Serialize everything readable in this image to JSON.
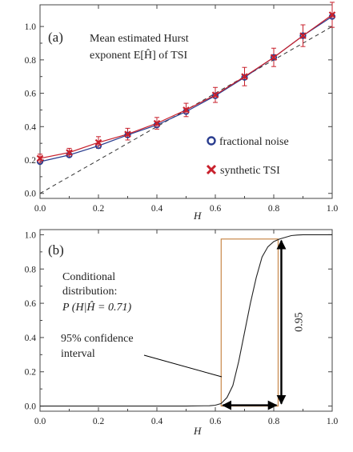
{
  "chart_data": [
    {
      "type": "line",
      "panel_label": "(a)",
      "annotation_lines": [
        "Mean estimated Hurst",
        "exponent E[Ĥ] of TSI"
      ],
      "xlabel": "H",
      "ylabel": "",
      "xlim": [
        0,
        1
      ],
      "ylim": [
        -0.03,
        1.13
      ],
      "xticks": [
        "0.0",
        "0.2",
        "0.4",
        "0.6",
        "0.8",
        "1.0"
      ],
      "yticks": [
        "0.0",
        "0.2",
        "0.4",
        "0.6",
        "0.8",
        "1.0"
      ],
      "x": [
        0.0,
        0.1,
        0.2,
        0.3,
        0.4,
        0.5,
        0.6,
        0.7,
        0.8,
        0.9,
        1.0
      ],
      "legend_placement": "lower-right",
      "series": [
        {
          "name": "fractional noise",
          "marker": "circle",
          "color": "#2a3d8f",
          "values": [
            0.19,
            0.23,
            0.285,
            0.35,
            0.41,
            0.49,
            0.585,
            0.695,
            0.815,
            0.945,
            1.06
          ]
        },
        {
          "name": "synthetic TSI",
          "marker": "cross",
          "color": "#c8202c",
          "values": [
            0.21,
            0.245,
            0.305,
            0.355,
            0.42,
            0.5,
            0.59,
            0.7,
            0.815,
            0.945,
            1.07
          ],
          "error": [
            0.025,
            0.025,
            0.035,
            0.035,
            0.035,
            0.04,
            0.045,
            0.055,
            0.055,
            0.065,
            0.075
          ]
        },
        {
          "name": "",
          "style": "dashed",
          "color": "#333333",
          "values": [
            0.0,
            0.1,
            0.2,
            0.3,
            0.4,
            0.5,
            0.6,
            0.7,
            0.8,
            0.9,
            1.0
          ]
        }
      ]
    },
    {
      "type": "line",
      "panel_label": "(b)",
      "annotation_lines": [
        "Conditional",
        "distribution:"
      ],
      "formula": "P (H|Ĥ = 0.71)",
      "interval_label_lines": [
        "95% confidence",
        " interval"
      ],
      "vertical_value_label": "0.95",
      "xlabel": "H",
      "ylabel": "",
      "xlim": [
        0,
        1
      ],
      "ylim": [
        -0.03,
        1.03
      ],
      "xticks": [
        "0.0",
        "0.2",
        "0.4",
        "0.6",
        "0.8",
        "1.0"
      ],
      "yticks": [
        "0.0",
        "0.2",
        "0.4",
        "0.6",
        "0.8",
        "1.0"
      ],
      "confidence_interval": [
        0.62,
        0.815
      ],
      "box_top": 0.975,
      "box_color": "#c8884a",
      "series": [
        {
          "name": "",
          "color": "#222222",
          "x": [
            0.0,
            0.5,
            0.58,
            0.6,
            0.62,
            0.64,
            0.66,
            0.68,
            0.7,
            0.72,
            0.74,
            0.76,
            0.78,
            0.8,
            0.82,
            0.84,
            0.86,
            0.88,
            0.9,
            1.0
          ],
          "values": [
            0.0,
            0.0,
            0.002,
            0.005,
            0.015,
            0.05,
            0.12,
            0.26,
            0.43,
            0.6,
            0.75,
            0.87,
            0.93,
            0.96,
            0.975,
            0.985,
            0.995,
            0.998,
            1.0,
            1.0
          ]
        }
      ]
    }
  ]
}
